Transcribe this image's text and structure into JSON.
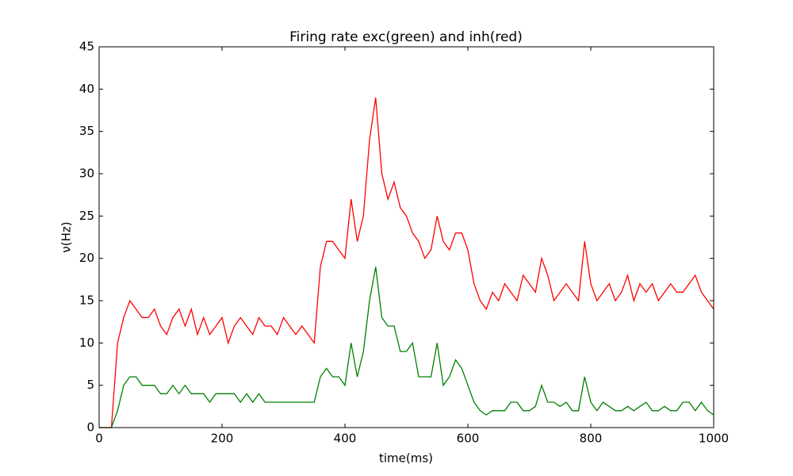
{
  "chart_data": {
    "type": "line",
    "title": "Firing rate exc(green) and inh(red)",
    "x_label": "time(ms)",
    "y_label": "ν(Hz)",
    "x": [
      0,
      10,
      20,
      30,
      40,
      50,
      60,
      70,
      80,
      90,
      100,
      110,
      120,
      130,
      140,
      150,
      160,
      170,
      180,
      190,
      200,
      210,
      220,
      230,
      240,
      250,
      260,
      270,
      280,
      290,
      300,
      310,
      320,
      330,
      340,
      350,
      360,
      370,
      380,
      390,
      400,
      410,
      420,
      430,
      440,
      450,
      460,
      470,
      480,
      490,
      500,
      510,
      520,
      530,
      540,
      550,
      560,
      570,
      580,
      590,
      600,
      610,
      620,
      630,
      640,
      650,
      660,
      670,
      680,
      690,
      700,
      710,
      720,
      730,
      740,
      750,
      760,
      770,
      780,
      790,
      800,
      810,
      820,
      830,
      840,
      850,
      860,
      870,
      880,
      890,
      900,
      910,
      920,
      930,
      940,
      950,
      960,
      970,
      980,
      990,
      1000
    ],
    "series": [
      {
        "color": "#ff0000",
        "values": [
          0,
          0,
          0,
          10,
          13,
          15,
          14,
          13,
          13,
          14,
          12,
          11,
          13,
          14,
          12,
          14,
          11,
          13,
          11,
          12,
          13,
          10,
          12,
          13,
          12,
          11,
          13,
          12,
          12,
          11,
          13,
          12,
          11,
          12,
          11,
          10,
          19,
          22,
          22,
          21,
          20,
          27,
          22,
          25,
          34,
          39,
          30,
          27,
          29,
          26,
          25,
          23,
          22,
          20,
          21,
          25,
          22,
          21,
          23,
          23,
          21,
          17,
          15,
          14,
          16,
          15,
          17,
          16,
          15,
          18,
          17,
          16,
          20,
          18,
          15,
          16,
          17,
          16,
          15,
          22,
          17,
          15,
          16,
          17,
          15,
          16,
          18,
          15,
          17,
          16,
          17,
          15,
          16,
          17,
          16,
          16,
          17,
          18,
          16,
          15,
          14
        ]
      },
      {
        "color": "#008000",
        "values": [
          0,
          0,
          0,
          2,
          5,
          6,
          6,
          5,
          5,
          5,
          4,
          4,
          5,
          4,
          5,
          4,
          4,
          4,
          3,
          4,
          4,
          4,
          4,
          3,
          4,
          3,
          4,
          3,
          3,
          3,
          3,
          3,
          3,
          3,
          3,
          3,
          6,
          7,
          6,
          6,
          5,
          10,
          6,
          9,
          15,
          19,
          13,
          12,
          12,
          9,
          9,
          10,
          6,
          6,
          6,
          10,
          5,
          6,
          8,
          7,
          5,
          3,
          2,
          1.5,
          2,
          2,
          2,
          3,
          3,
          2,
          2,
          2.5,
          5,
          3,
          3,
          2.5,
          3,
          2,
          2,
          6,
          3,
          2,
          3,
          2.5,
          2,
          2,
          2.5,
          2,
          2.5,
          3,
          2,
          2,
          2.5,
          2,
          2,
          3,
          3,
          2,
          3,
          2,
          1.5
        ]
      }
    ],
    "xlim": [
      0,
      1000
    ],
    "xticks": [
      0,
      200,
      400,
      600,
      800,
      1000
    ],
    "ylim": [
      0,
      45
    ],
    "yticks": [
      0,
      5,
      10,
      15,
      20,
      25,
      30,
      35,
      40,
      45
    ]
  }
}
